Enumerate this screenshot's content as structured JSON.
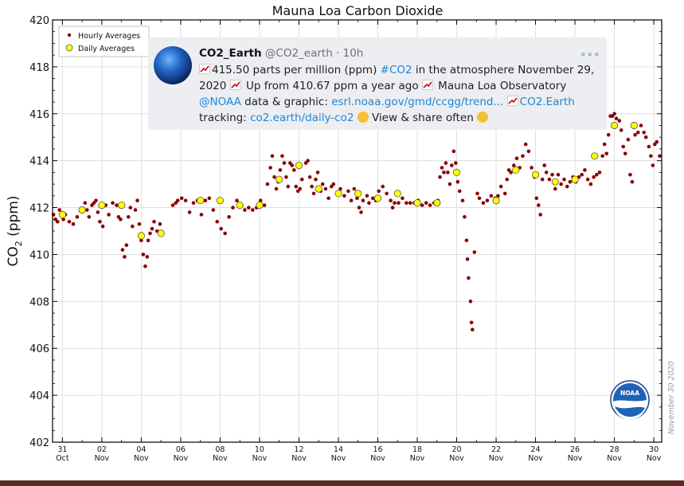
{
  "chart_data": {
    "type": "scatter",
    "title": "Mauna Loa Carbon Dioxide",
    "ylabel": "CO2 (ppm)",
    "xlabel": "",
    "ylim": [
      402,
      420
    ],
    "xlim": [
      -0.5,
      30.4
    ],
    "y_ticks": [
      402,
      404,
      406,
      408,
      410,
      412,
      414,
      416,
      418,
      420
    ],
    "x_ticks": [
      {
        "x": 0,
        "day": "31",
        "month": "Oct"
      },
      {
        "x": 2,
        "day": "02",
        "month": "Nov"
      },
      {
        "x": 4,
        "day": "04",
        "month": "Nov"
      },
      {
        "x": 6,
        "day": "06",
        "month": "Nov"
      },
      {
        "x": 8,
        "day": "08",
        "month": "Nov"
      },
      {
        "x": 10,
        "day": "10",
        "month": "Nov"
      },
      {
        "x": 12,
        "day": "12",
        "month": "Nov"
      },
      {
        "x": 14,
        "day": "14",
        "month": "Nov"
      },
      {
        "x": 16,
        "day": "16",
        "month": "Nov"
      },
      {
        "x": 18,
        "day": "18",
        "month": "Nov"
      },
      {
        "x": 20,
        "day": "20",
        "month": "Nov"
      },
      {
        "x": 22,
        "day": "22",
        "month": "Nov"
      },
      {
        "x": 24,
        "day": "24",
        "month": "Nov"
      },
      {
        "x": 26,
        "day": "26",
        "month": "Nov"
      },
      {
        "x": 28,
        "day": "28",
        "month": "Nov"
      },
      {
        "x": 30,
        "day": "30",
        "month": "Nov"
      }
    ],
    "legend_position": "top-left",
    "grid": true,
    "series": [
      {
        "name": "Hourly Averages",
        "color": "#8b0000",
        "points": [
          [
            -0.45,
            411.7
          ],
          [
            -0.35,
            411.5
          ],
          [
            -0.25,
            411.4
          ],
          [
            -0.15,
            411.9
          ],
          [
            0.05,
            411.5
          ],
          [
            0.15,
            411.7
          ],
          [
            0.35,
            411.4
          ],
          [
            0.55,
            411.3
          ],
          [
            0.75,
            411.6
          ],
          [
            0.95,
            411.9
          ],
          [
            1.05,
            411.9
          ],
          [
            1.15,
            412.2
          ],
          [
            1.25,
            411.9
          ],
          [
            1.35,
            411.6
          ],
          [
            1.5,
            412.1
          ],
          [
            1.6,
            412.2
          ],
          [
            1.7,
            412.3
          ],
          [
            1.8,
            411.8
          ],
          [
            1.9,
            411.4
          ],
          [
            2.05,
            411.2
          ],
          [
            2.2,
            412.1
          ],
          [
            2.35,
            411.7
          ],
          [
            2.55,
            412.2
          ],
          [
            2.75,
            412.1
          ],
          [
            2.85,
            411.6
          ],
          [
            2.95,
            411.5
          ],
          [
            3.05,
            410.2
          ],
          [
            3.15,
            409.9
          ],
          [
            3.25,
            410.4
          ],
          [
            3.35,
            411.6
          ],
          [
            3.45,
            412.0
          ],
          [
            3.55,
            411.2
          ],
          [
            3.7,
            411.9
          ],
          [
            3.8,
            412.3
          ],
          [
            3.9,
            411.3
          ],
          [
            4.0,
            410.6
          ],
          [
            4.1,
            410.0
          ],
          [
            4.2,
            409.5
          ],
          [
            4.3,
            409.9
          ],
          [
            4.35,
            410.6
          ],
          [
            4.45,
            410.9
          ],
          [
            4.55,
            411.1
          ],
          [
            4.65,
            411.4
          ],
          [
            4.8,
            411.0
          ],
          [
            4.95,
            411.3
          ],
          [
            5.6,
            412.1
          ],
          [
            5.75,
            412.2
          ],
          [
            5.85,
            412.3
          ],
          [
            6.05,
            412.4
          ],
          [
            6.25,
            412.3
          ],
          [
            6.45,
            411.8
          ],
          [
            6.65,
            412.2
          ],
          [
            6.85,
            412.3
          ],
          [
            7.05,
            411.7
          ],
          [
            7.25,
            412.3
          ],
          [
            7.45,
            412.4
          ],
          [
            7.65,
            411.9
          ],
          [
            7.85,
            411.4
          ],
          [
            8.05,
            411.1
          ],
          [
            8.25,
            410.9
          ],
          [
            8.45,
            411.6
          ],
          [
            8.65,
            412.0
          ],
          [
            8.85,
            412.3
          ],
          [
            9.05,
            412.1
          ],
          [
            9.25,
            411.9
          ],
          [
            9.45,
            412.0
          ],
          [
            9.65,
            411.9
          ],
          [
            9.85,
            412.0
          ],
          [
            10.05,
            412.3
          ],
          [
            10.25,
            412.1
          ],
          [
            10.4,
            413.0
          ],
          [
            10.55,
            413.7
          ],
          [
            10.65,
            414.2
          ],
          [
            10.75,
            413.3
          ],
          [
            10.85,
            412.8
          ],
          [
            10.95,
            413.1
          ],
          [
            11.05,
            413.6
          ],
          [
            11.15,
            414.2
          ],
          [
            11.25,
            413.9
          ],
          [
            11.35,
            413.3
          ],
          [
            11.45,
            412.9
          ],
          [
            11.55,
            413.9
          ],
          [
            11.65,
            413.8
          ],
          [
            11.75,
            413.6
          ],
          [
            11.85,
            412.9
          ],
          [
            11.95,
            412.7
          ],
          [
            12.05,
            412.8
          ],
          [
            12.15,
            413.2
          ],
          [
            12.35,
            413.9
          ],
          [
            12.45,
            414.0
          ],
          [
            12.55,
            413.3
          ],
          [
            12.65,
            412.9
          ],
          [
            12.75,
            412.6
          ],
          [
            12.85,
            413.2
          ],
          [
            12.95,
            413.5
          ],
          [
            13.1,
            412.7
          ],
          [
            13.2,
            413.0
          ],
          [
            13.35,
            412.8
          ],
          [
            13.5,
            412.4
          ],
          [
            13.65,
            412.9
          ],
          [
            13.75,
            413.0
          ],
          [
            13.95,
            412.6
          ],
          [
            14.1,
            412.8
          ],
          [
            14.3,
            412.5
          ],
          [
            14.5,
            412.7
          ],
          [
            14.65,
            412.3
          ],
          [
            14.8,
            412.8
          ],
          [
            14.95,
            412.4
          ],
          [
            15.05,
            412.0
          ],
          [
            15.15,
            411.8
          ],
          [
            15.25,
            412.3
          ],
          [
            15.45,
            412.5
          ],
          [
            15.55,
            412.2
          ],
          [
            15.75,
            412.4
          ],
          [
            15.9,
            412.3
          ],
          [
            16.05,
            412.7
          ],
          [
            16.25,
            412.9
          ],
          [
            16.45,
            412.6
          ],
          [
            16.65,
            412.3
          ],
          [
            16.75,
            412.0
          ],
          [
            16.85,
            412.2
          ],
          [
            17.05,
            412.2
          ],
          [
            17.25,
            412.4
          ],
          [
            17.45,
            412.2
          ],
          [
            17.65,
            412.2
          ],
          [
            17.85,
            412.2
          ],
          [
            18.05,
            412.3
          ],
          [
            18.25,
            412.1
          ],
          [
            18.45,
            412.2
          ],
          [
            18.65,
            412.1
          ],
          [
            18.85,
            412.2
          ],
          [
            19.05,
            412.3
          ],
          [
            19.15,
            413.3
          ],
          [
            19.25,
            413.7
          ],
          [
            19.35,
            413.5
          ],
          [
            19.45,
            413.9
          ],
          [
            19.55,
            413.5
          ],
          [
            19.65,
            413.0
          ],
          [
            19.75,
            413.8
          ],
          [
            19.85,
            414.4
          ],
          [
            19.95,
            413.9
          ],
          [
            20.05,
            413.1
          ],
          [
            20.15,
            412.7
          ],
          [
            20.3,
            412.3
          ],
          [
            20.4,
            411.6
          ],
          [
            20.5,
            410.6
          ],
          [
            20.55,
            409.8
          ],
          [
            20.6,
            409.0
          ],
          [
            20.7,
            408.0
          ],
          [
            20.75,
            407.1
          ],
          [
            20.8,
            406.8
          ],
          [
            20.9,
            410.1
          ],
          [
            21.05,
            412.6
          ],
          [
            21.15,
            412.4
          ],
          [
            21.35,
            412.2
          ],
          [
            21.55,
            412.3
          ],
          [
            21.75,
            412.5
          ],
          [
            21.95,
            412.4
          ],
          [
            22.1,
            412.5
          ],
          [
            22.25,
            412.9
          ],
          [
            22.45,
            412.6
          ],
          [
            22.55,
            413.2
          ],
          [
            22.65,
            413.6
          ],
          [
            22.75,
            413.5
          ],
          [
            22.9,
            413.8
          ],
          [
            23.05,
            414.1
          ],
          [
            23.2,
            413.7
          ],
          [
            23.35,
            414.2
          ],
          [
            23.5,
            414.7
          ],
          [
            23.65,
            414.4
          ],
          [
            23.8,
            413.7
          ],
          [
            23.95,
            413.3
          ],
          [
            24.05,
            412.4
          ],
          [
            24.15,
            412.1
          ],
          [
            24.25,
            411.7
          ],
          [
            24.35,
            413.2
          ],
          [
            24.45,
            413.8
          ],
          [
            24.55,
            413.5
          ],
          [
            24.7,
            413.2
          ],
          [
            24.85,
            413.4
          ],
          [
            25.0,
            412.8
          ],
          [
            25.15,
            413.4
          ],
          [
            25.3,
            413.0
          ],
          [
            25.45,
            413.2
          ],
          [
            25.6,
            412.9
          ],
          [
            25.75,
            413.1
          ],
          [
            25.9,
            413.3
          ],
          [
            26.05,
            413.1
          ],
          [
            26.2,
            413.3
          ],
          [
            26.35,
            413.4
          ],
          [
            26.5,
            413.6
          ],
          [
            26.65,
            413.2
          ],
          [
            26.8,
            413.0
          ],
          [
            26.95,
            413.3
          ],
          [
            27.1,
            413.4
          ],
          [
            27.25,
            413.5
          ],
          [
            27.4,
            414.2
          ],
          [
            27.5,
            414.7
          ],
          [
            27.6,
            414.3
          ],
          [
            27.7,
            415.1
          ],
          [
            27.8,
            415.9
          ],
          [
            27.9,
            415.9
          ],
          [
            28.0,
            416.0
          ],
          [
            28.1,
            415.8
          ],
          [
            28.25,
            415.7
          ],
          [
            28.35,
            415.3
          ],
          [
            28.45,
            414.6
          ],
          [
            28.55,
            414.3
          ],
          [
            28.7,
            414.9
          ],
          [
            28.8,
            413.4
          ],
          [
            28.9,
            413.1
          ],
          [
            29.05,
            415.1
          ],
          [
            29.2,
            415.2
          ],
          [
            29.35,
            415.5
          ],
          [
            29.5,
            415.2
          ],
          [
            29.6,
            415.0
          ],
          [
            29.75,
            414.6
          ],
          [
            29.85,
            414.2
          ],
          [
            29.95,
            413.8
          ],
          [
            30.05,
            414.7
          ],
          [
            30.15,
            414.8
          ],
          [
            30.3,
            414.2
          ]
        ]
      },
      {
        "name": "Daily Averages",
        "color": "#ffff00",
        "points": [
          [
            0,
            411.7
          ],
          [
            1,
            411.9
          ],
          [
            2,
            412.1
          ],
          [
            3,
            412.1
          ],
          [
            4,
            410.8
          ],
          [
            5,
            410.9
          ],
          [
            7,
            412.3
          ],
          [
            8,
            412.3
          ],
          [
            9,
            412.1
          ],
          [
            10,
            412.1
          ],
          [
            11,
            413.2
          ],
          [
            12,
            413.8
          ],
          [
            13,
            412.8
          ],
          [
            14,
            412.6
          ],
          [
            15,
            412.6
          ],
          [
            16,
            412.4
          ],
          [
            17,
            412.6
          ],
          [
            18,
            412.2
          ],
          [
            19,
            412.2
          ],
          [
            20,
            413.5
          ],
          [
            22,
            412.3
          ],
          [
            23,
            413.6
          ],
          [
            24,
            413.4
          ],
          [
            25,
            413.1
          ],
          [
            26,
            413.2
          ],
          [
            27,
            414.2
          ],
          [
            28,
            415.5
          ],
          [
            29,
            415.5
          ]
        ]
      }
    ]
  },
  "tweet": {
    "user": "CO2_Earth",
    "handle": "@CO2_earth · 10h",
    "more": "∘∘∘",
    "text_1": "415.50 parts per million (ppm) ",
    "tag_co2": "#CO2",
    "text_2": " in the atmosphere November 29, 2020 ",
    "text_3": " Up from 410.67 ppm a year ago ",
    "text_4": " Mauna Loa Observatory ",
    "mention_noaa": "@NOAA",
    "text_5": " data & graphic: ",
    "link_esrl": "esrl.noaa.gov/gmd/ccgg/trend...",
    "link_co2earth": "CO2.Earth",
    "text_6": " tracking: ",
    "link_daily": "co2.earth/daily-co2",
    "text_7": " View & share often "
  },
  "logo_text": "NOAA",
  "date_stamp": "November 30 2020"
}
